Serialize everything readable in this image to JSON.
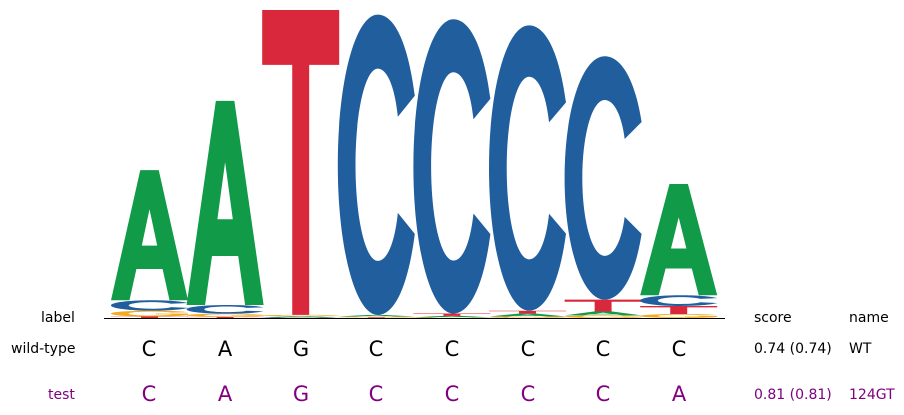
{
  "chart_data": {
    "type": "sequence-logo",
    "letters": [
      "A",
      "C",
      "G",
      "T"
    ],
    "colors": {
      "A": "#119a48",
      "C": "#215e9e",
      "G": "#f3ab24",
      "T": "#d9273b"
    },
    "positions": [
      {
        "A": 0.88,
        "C": 0.07,
        "G": 0.04,
        "T": 0.01
      },
      {
        "A": 0.94,
        "C": 0.04,
        "G": 0.015,
        "T": 0.005
      },
      {
        "A": 0.003,
        "C": 0.002,
        "G": 0.005,
        "T": 0.99
      },
      {
        "A": 0.005,
        "C": 0.99,
        "G": 0.003,
        "T": 0.002
      },
      {
        "A": 0.005,
        "C": 0.985,
        "G": 0.002,
        "T": 0.008
      },
      {
        "A": 0.01,
        "C": 0.975,
        "G": 0.005,
        "T": 0.01
      },
      {
        "A": 0.015,
        "C": 0.93,
        "G": 0.01,
        "T": 0.045
      },
      {
        "A": 0.83,
        "C": 0.08,
        "G": 0.03,
        "T": 0.06
      }
    ],
    "information_content": [
      0.96,
      1.41,
      2.0,
      1.97,
      1.94,
      1.9,
      1.7,
      0.87
    ],
    "ylim": [
      0,
      2.0
    ]
  },
  "header": {
    "label": "label",
    "score": "score",
    "name": "name"
  },
  "rows": [
    {
      "label": "wild-type",
      "sequence": [
        "C",
        "A",
        "G",
        "C",
        "C",
        "C",
        "C",
        "C"
      ],
      "score": "0.74 (0.74)",
      "name": "WT",
      "color": "#000000"
    },
    {
      "label": "test",
      "sequence": [
        "C",
        "A",
        "G",
        "C",
        "C",
        "C",
        "C",
        "A"
      ],
      "score": "0.81 (0.81)",
      "name": "124GT",
      "color": "#800080"
    }
  ]
}
